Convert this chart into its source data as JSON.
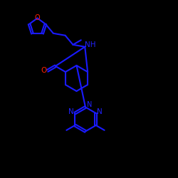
{
  "background_color": "#000000",
  "bond_color": "#1a1aff",
  "O_color": "#ff2200",
  "N_color": "#2222ff",
  "line_width": 1.5,
  "figsize": [
    2.5,
    2.5
  ],
  "dpi": 100,
  "xlim": [
    0,
    10
  ],
  "ylim": [
    0,
    10
  ]
}
